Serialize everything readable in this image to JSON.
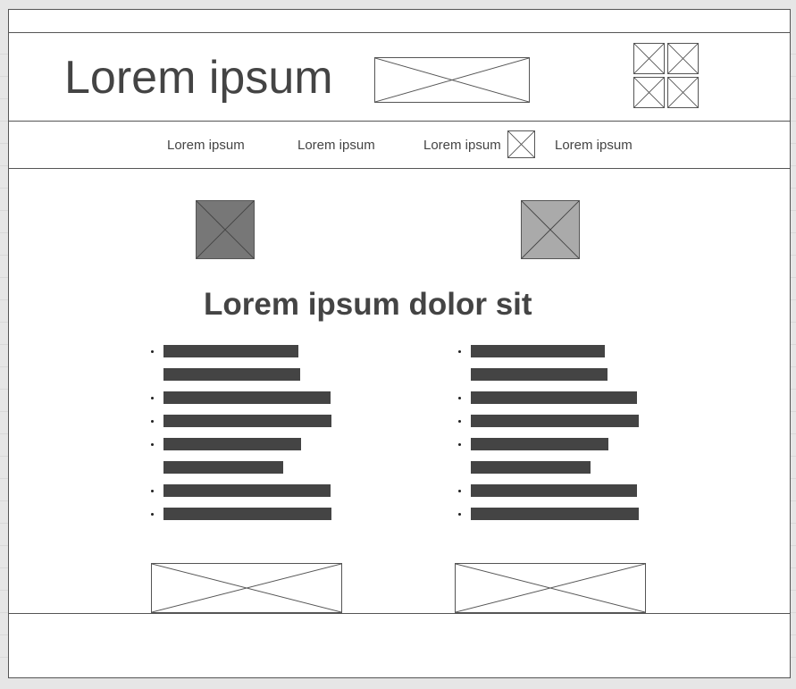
{
  "header": {
    "logo_text": "Lorem ipsum"
  },
  "nav": {
    "items": [
      {
        "label": "Lorem ipsum"
      },
      {
        "label": "Lorem ipsum"
      },
      {
        "label": "Lorem ipsum"
      },
      {
        "label": "Lorem ipsum"
      }
    ]
  },
  "main": {
    "heading": "Lorem ipsum dolor sit"
  },
  "colors": {
    "border": "#555555",
    "text": "#444444",
    "image_dark": "#777777",
    "image_light": "#aaaaaa",
    "background": "#e6e6e6"
  }
}
